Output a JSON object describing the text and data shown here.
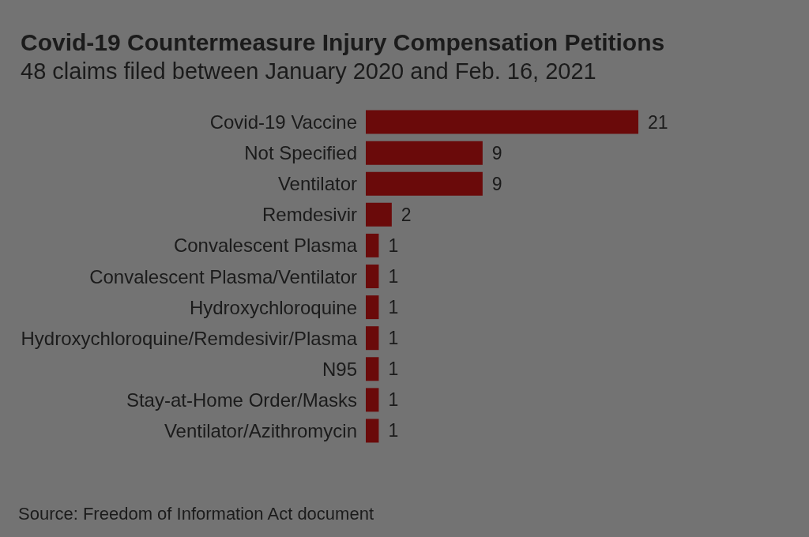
{
  "chart_data": {
    "type": "bar",
    "orientation": "horizontal",
    "title": "Covid-19 Countermeasure Injury Compensation Petitions",
    "subtitle": "48 claims filed between January 2020 and Feb. 16, 2021",
    "categories": [
      "Covid-19 Vaccine",
      "Not Specified",
      "Ventilator",
      "Remdesivir",
      "Convalescent Plasma",
      "Convalescent Plasma/Ventilator",
      "Hydroxychloroquine",
      "Hydroxychloroquine/Remdesivir/Plasma",
      "N95",
      "Stay-at-Home Order/Masks",
      "Ventilator/Azithromycin"
    ],
    "values": [
      21,
      9,
      9,
      2,
      1,
      1,
      1,
      1,
      1,
      1,
      1
    ],
    "color": "#6a0a0a",
    "data_labels": true,
    "annotations": [
      "Source: Freedom of Information Act document"
    ]
  }
}
